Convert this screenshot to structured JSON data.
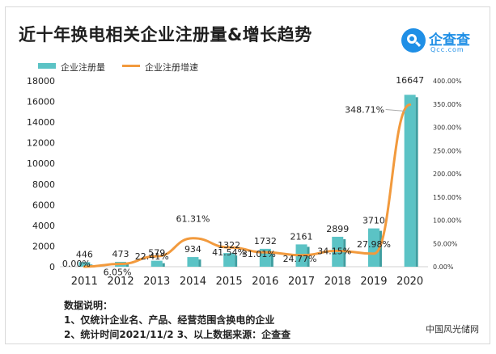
{
  "title": "近十年换电相关企业注册量&增长趋势",
  "logo": {
    "name": "企查查",
    "domain": "Qcc.com"
  },
  "legend": [
    "企业注册量",
    "企业注册增速"
  ],
  "chart_data": {
    "type": "bar",
    "categories": [
      "2011",
      "2012",
      "2013",
      "2014",
      "2015",
      "2016",
      "2017",
      "2018",
      "2019",
      "2020"
    ],
    "series": [
      {
        "name": "企业注册量",
        "type": "bar",
        "axis": "left",
        "color": "#5bc3c5",
        "values": [
          446,
          473,
          579,
          934,
          1322,
          1732,
          2161,
          2899,
          3710,
          16647
        ]
      },
      {
        "name": "企业注册增速",
        "type": "line",
        "axis": "right",
        "color": "#f29a3d",
        "values": [
          0.0,
          6.05,
          22.41,
          61.31,
          41.54,
          31.01,
          24.77,
          34.15,
          27.98,
          348.71
        ],
        "labels": [
          "0.00%",
          "6.05%",
          "22.41%",
          "61.31%",
          "41.54%",
          "31.01%",
          "24.77%",
          "34.15%",
          "27.98%",
          "348.71%"
        ]
      }
    ],
    "ylim": [
      0,
      18000
    ],
    "yticks": [
      0,
      2000,
      4000,
      6000,
      8000,
      10000,
      12000,
      14000,
      16000,
      18000
    ],
    "y2lim": [
      0,
      400
    ],
    "y2ticks": [
      "0.00%",
      "50.00%",
      "100.00%",
      "150.00%",
      "200.00%",
      "250.00%",
      "300.00%",
      "350.00%",
      "400.00%"
    ],
    "legend_position": "top-left",
    "grid": false
  },
  "notes": {
    "heading": "数据说明：",
    "line1": "1、仅统计企业名、产品、经营范围含换电的企业",
    "line2": "2、统计时间2021/11/2   3、以上数据来源：企查查"
  },
  "watermark": "中国风光储网"
}
